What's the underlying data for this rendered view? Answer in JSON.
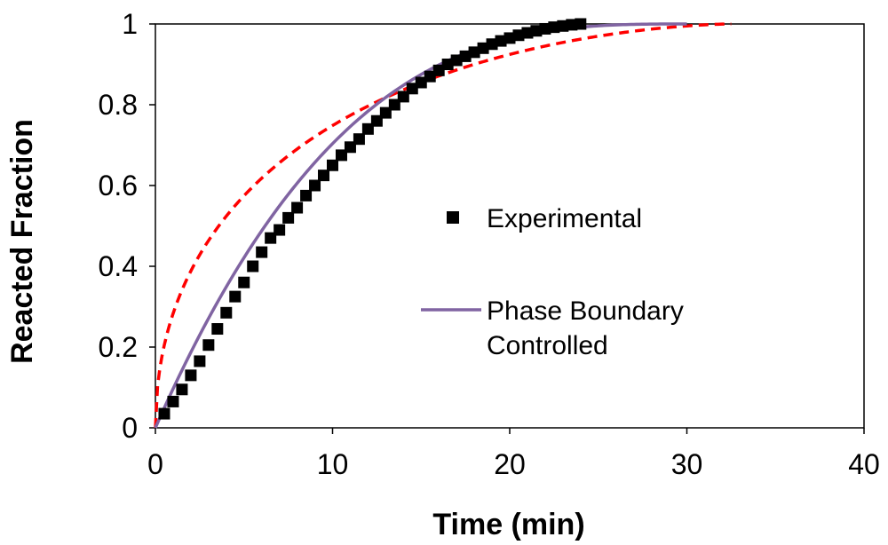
{
  "chart_data": {
    "type": "scatter",
    "title": "",
    "xlabel": "Time (min)",
    "ylabel": "Reacted Fraction",
    "xlim": [
      0,
      40
    ],
    "ylim": [
      0,
      1
    ],
    "xticks": [
      0,
      10,
      20,
      30,
      40
    ],
    "xtick_labels": [
      "0",
      "10",
      "20",
      "30",
      "40"
    ],
    "yticks": [
      0,
      0.2,
      0.4,
      0.6,
      0.8,
      1
    ],
    "ytick_labels": [
      "0",
      "0.2",
      "0.4",
      "0.6",
      "0.8",
      "1"
    ],
    "grid": false,
    "legend_position": "center-right",
    "colors": {
      "experimental": "#000000",
      "phase_boundary": "#8064a2",
      "other_model": "#ff0000"
    },
    "series": [
      {
        "name": "Experimental",
        "type": "scatter",
        "marker": "square",
        "x": [
          0.5,
          1.0,
          1.5,
          2.0,
          2.5,
          3.0,
          3.5,
          4.0,
          4.5,
          5.0,
          5.5,
          6.0,
          6.5,
          7.0,
          7.5,
          8.0,
          8.5,
          9.0,
          9.5,
          10.0,
          10.5,
          11.0,
          11.5,
          12.0,
          12.5,
          13.0,
          13.5,
          14.0,
          14.5,
          15.0,
          15.5,
          16.0,
          16.5,
          17.0,
          17.5,
          18.0,
          18.5,
          19.0,
          19.5,
          20.0,
          20.5,
          21.0,
          21.5,
          22.0,
          22.5,
          23.0,
          23.5,
          24.0
        ],
        "y": [
          0.035,
          0.065,
          0.095,
          0.13,
          0.165,
          0.205,
          0.245,
          0.285,
          0.325,
          0.36,
          0.4,
          0.435,
          0.47,
          0.49,
          0.52,
          0.545,
          0.575,
          0.6,
          0.625,
          0.65,
          0.675,
          0.695,
          0.715,
          0.74,
          0.76,
          0.78,
          0.8,
          0.82,
          0.84,
          0.855,
          0.87,
          0.885,
          0.9,
          0.91,
          0.92,
          0.93,
          0.94,
          0.95,
          0.958,
          0.965,
          0.972,
          0.978,
          0.983,
          0.988,
          0.992,
          0.995,
          0.998,
          1.0
        ]
      },
      {
        "name": "Phase Boundary Controlled",
        "type": "line",
        "model": "contracting_sphere",
        "params": {
          "tau": 30
        },
        "x_range": [
          0,
          30
        ]
      },
      {
        "name": "",
        "type": "line",
        "style": "dashed",
        "model": "diffusion_controlled",
        "params": {
          "tau": 32.5
        },
        "x_range": [
          0,
          32.5
        ]
      }
    ],
    "legend": [
      {
        "label_lines": [
          "Experimental"
        ],
        "series": 0
      },
      {
        "label_lines": [
          "Phase Boundary",
          "Controlled"
        ],
        "series": 1
      }
    ]
  }
}
